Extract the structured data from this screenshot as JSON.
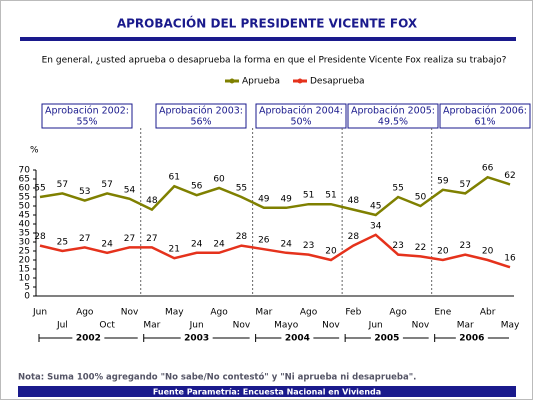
{
  "chart_data": {
    "type": "line",
    "title": "APROBACIÓN DEL PRESIDENTE VICENTE FOX",
    "subtitle": "En general, ¿usted aprueba o desaprueba la forma en que el Presidente Vicente Fox  realiza su trabajo?",
    "ylabel": "%",
    "categories": [
      "Jun",
      "Jul",
      "Ago",
      "Oct",
      "Nov",
      "Mar",
      "May",
      "Jun",
      "Ago",
      "Nov",
      "Mar",
      "Mayo",
      "Ago",
      "Nov",
      "Feb",
      "Jun",
      "Ago",
      "Nov",
      "Ene",
      "Mar",
      "Abr",
      "May"
    ],
    "years": [
      "2002",
      "2003",
      "2004",
      "2005",
      "2006"
    ],
    "series": [
      {
        "name": "Aprueba",
        "color": "#7f8000",
        "values": [
          55,
          57,
          53,
          57,
          54,
          48,
          61,
          56,
          60,
          55,
          49,
          49,
          51,
          51,
          48,
          45,
          55,
          50,
          59,
          57,
          66,
          62
        ]
      },
      {
        "name": "Desaprueba",
        "color": "#e5321c",
        "values": [
          28,
          25,
          27,
          24,
          27,
          27,
          21,
          24,
          24,
          28,
          26,
          24,
          23,
          20,
          28,
          34,
          23,
          22,
          20,
          23,
          20,
          16
        ]
      }
    ],
    "annotations": [
      {
        "title": "Aprobación 2002:",
        "value": "55%"
      },
      {
        "title": "Aprobación 2003:",
        "value": "56%"
      },
      {
        "title": "Aprobación 2004:",
        "value": "50%"
      },
      {
        "title": "Aprobación 2005:",
        "value": "49.5%"
      },
      {
        "title": "Aprobación 2006:",
        "value": "61%"
      }
    ],
    "ylim": [
      0,
      70
    ],
    "yticks": [
      0,
      5,
      10,
      15,
      20,
      25,
      30,
      35,
      40,
      45,
      50,
      55,
      60,
      65,
      70
    ],
    "grid": false,
    "note": "Nota: Suma 100% agregando  \"No sabe/No contestó\" y \"Ni aprueba ni desaprueba\".",
    "source": "Fuente Parametría: Encuesta Nacional en Vivienda"
  }
}
